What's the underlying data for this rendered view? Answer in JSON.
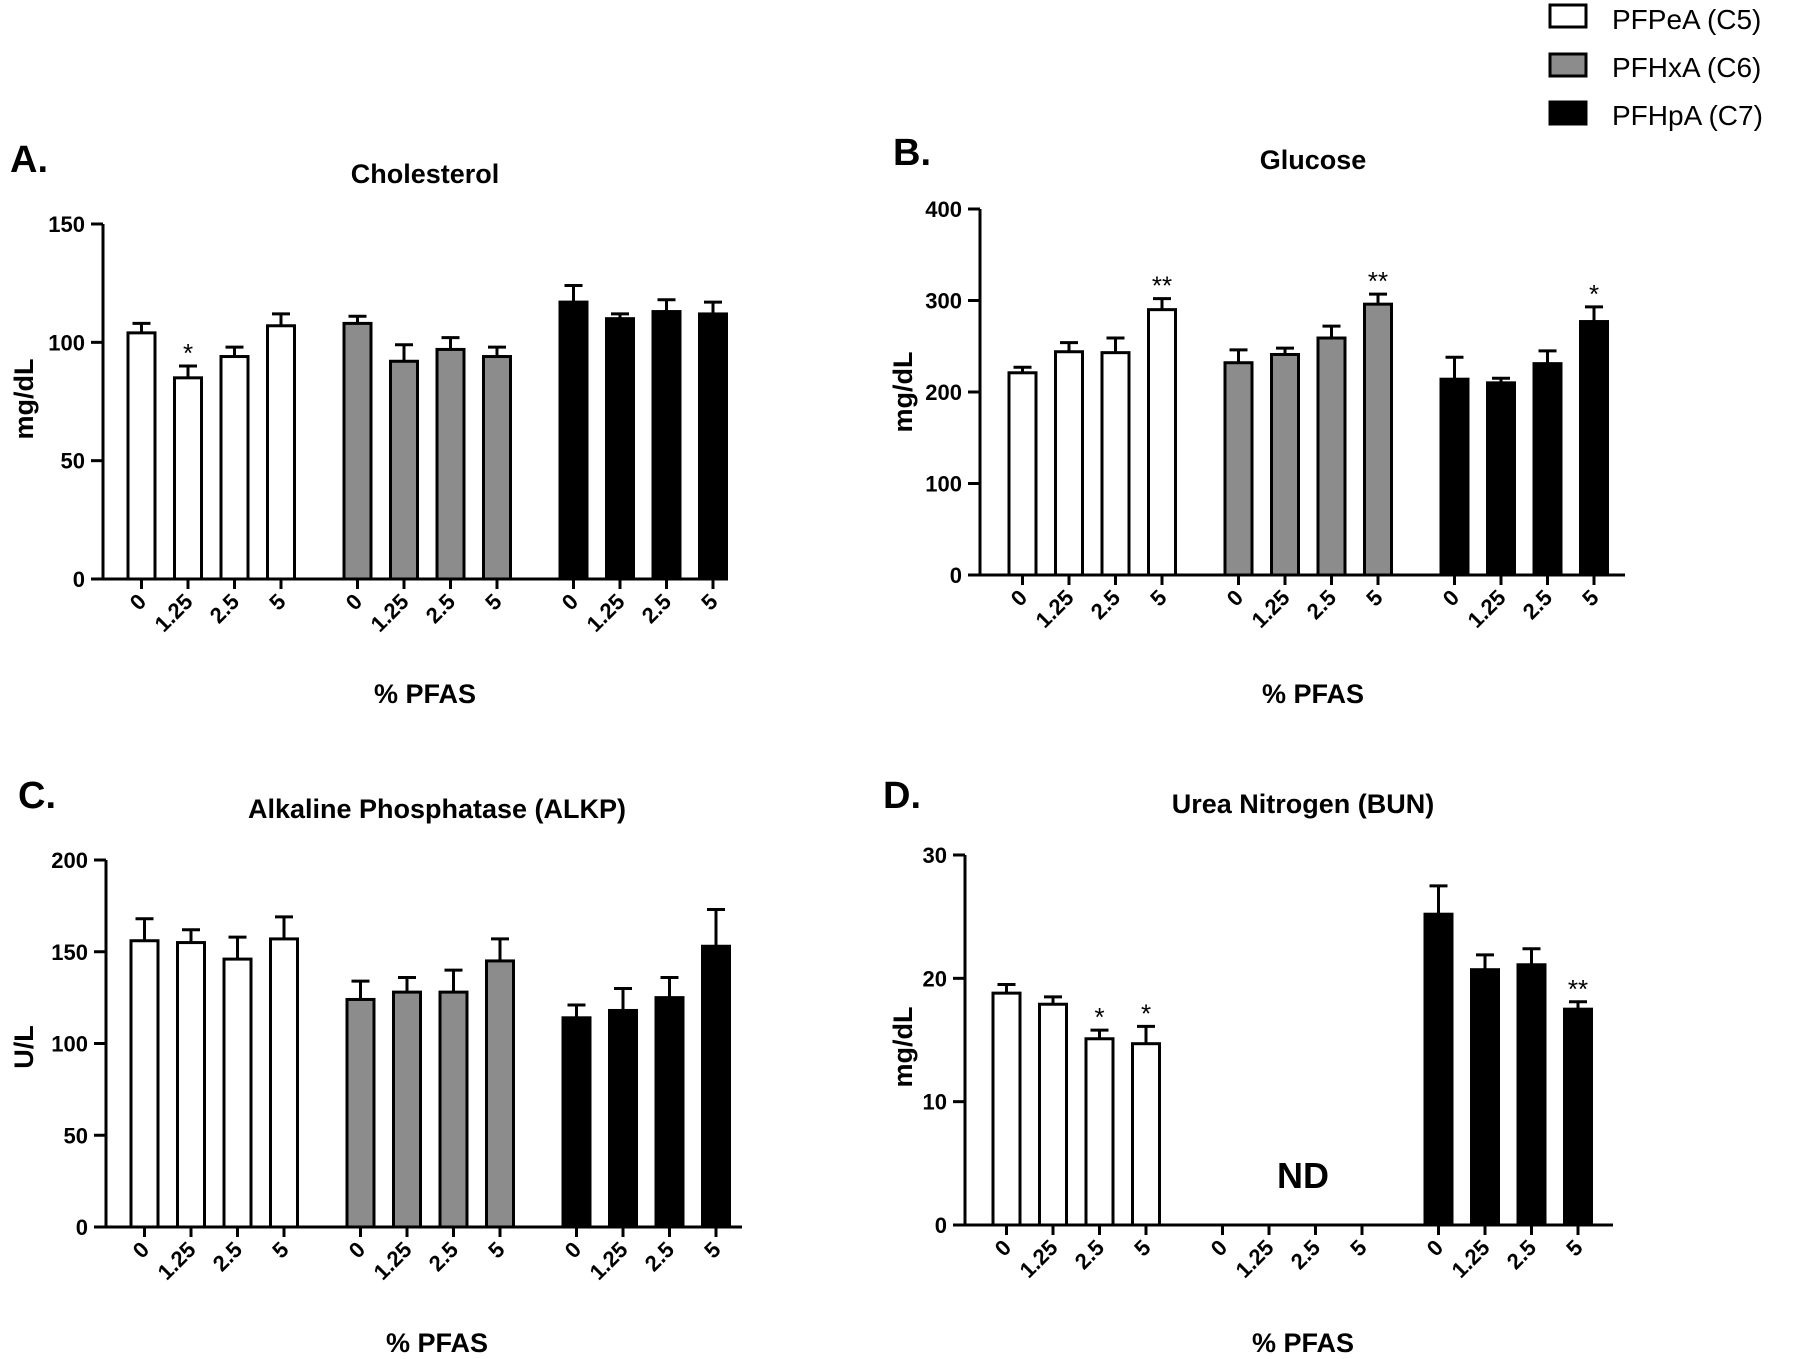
{
  "legend": [
    {
      "label": "PFPeA (C5)",
      "color": "#ffffff"
    },
    {
      "label": "PFHxA (C6)",
      "color": "#8c8c8c"
    },
    {
      "label": "PFHpA (C7)",
      "color": "#000000"
    }
  ],
  "chart_data": [
    {
      "type": "bar",
      "panel": "A.",
      "title": "Cholesterol",
      "ylabel": "mg/dL",
      "xlabel": "% PFAS",
      "ylim": [
        0,
        150
      ],
      "yticks": [
        "0",
        "50",
        "100",
        "150"
      ],
      "groups": [
        {
          "series": "PFPeA (C5)",
          "categories": [
            "0",
            "1.25",
            "2.5",
            "5"
          ],
          "values": [
            104,
            85,
            94,
            107
          ],
          "errors": [
            4,
            5,
            4,
            5
          ],
          "sig": [
            "",
            "*",
            "",
            ""
          ]
        },
        {
          "series": "PFHxA (C6)",
          "categories": [
            "0",
            "1.25",
            "2.5",
            "5"
          ],
          "values": [
            108,
            92,
            97,
            94
          ],
          "errors": [
            3,
            7,
            5,
            4
          ],
          "sig": [
            "",
            "",
            "",
            ""
          ]
        },
        {
          "series": "PFHpA (C7)",
          "categories": [
            "0",
            "1.25",
            "2.5",
            "5"
          ],
          "values": [
            117,
            110,
            113,
            112
          ],
          "errors": [
            7,
            2,
            5,
            5
          ],
          "sig": [
            "",
            "",
            "",
            ""
          ]
        }
      ]
    },
    {
      "type": "bar",
      "panel": "B.",
      "title": "Glucose",
      "ylabel": "mg/dL",
      "xlabel": "% PFAS",
      "ylim": [
        0,
        400
      ],
      "yticks": [
        "0",
        "100",
        "200",
        "300",
        "400"
      ],
      "groups": [
        {
          "series": "PFPeA (C5)",
          "categories": [
            "0",
            "1.25",
            "2.5",
            "5"
          ],
          "values": [
            221,
            244,
            243,
            290
          ],
          "errors": [
            6,
            10,
            16,
            12
          ],
          "sig": [
            "",
            "",
            "",
            "**"
          ]
        },
        {
          "series": "PFHxA (C6)",
          "categories": [
            "0",
            "1.25",
            "2.5",
            "5"
          ],
          "values": [
            232,
            241,
            259,
            296
          ],
          "errors": [
            14,
            7,
            13,
            11
          ],
          "sig": [
            "",
            "",
            "",
            "**"
          ]
        },
        {
          "series": "PFHpA (C7)",
          "categories": [
            "0",
            "1.25",
            "2.5",
            "5"
          ],
          "values": [
            214,
            210,
            231,
            277
          ],
          "errors": [
            24,
            5,
            14,
            16
          ],
          "sig": [
            "",
            "",
            "",
            "*"
          ]
        }
      ]
    },
    {
      "type": "bar",
      "panel": "C.",
      "title": "Alkaline Phosphatase (ALKP)",
      "ylabel": "U/L",
      "xlabel": "% PFAS",
      "ylim": [
        0,
        200
      ],
      "yticks": [
        "0",
        "50",
        "100",
        "150",
        "200"
      ],
      "groups": [
        {
          "series": "PFPeA (C5)",
          "categories": [
            "0",
            "1.25",
            "2.5",
            "5"
          ],
          "values": [
            156,
            155,
            146,
            157
          ],
          "errors": [
            12,
            7,
            12,
            12
          ],
          "sig": [
            "",
            "",
            "",
            ""
          ]
        },
        {
          "series": "PFHxA (C6)",
          "categories": [
            "0",
            "1.25",
            "2.5",
            "5"
          ],
          "values": [
            124,
            128,
            128,
            145
          ],
          "errors": [
            10,
            8,
            12,
            12
          ],
          "sig": [
            "",
            "",
            "",
            ""
          ]
        },
        {
          "series": "PFHpA (C7)",
          "categories": [
            "0",
            "1.25",
            "2.5",
            "5"
          ],
          "values": [
            114,
            118,
            125,
            153
          ],
          "errors": [
            7,
            12,
            11,
            20
          ],
          "sig": [
            "",
            "",
            "",
            ""
          ]
        }
      ]
    },
    {
      "type": "bar",
      "panel": "D.",
      "title": "Urea Nitrogen (BUN)",
      "ylabel": "mg/dL",
      "xlabel": "% PFAS",
      "ylim": [
        0,
        30
      ],
      "yticks": [
        "0",
        "10",
        "20",
        "30"
      ],
      "annotation": "ND",
      "groups": [
        {
          "series": "PFPeA (C5)",
          "categories": [
            "0",
            "1.25",
            "2.5",
            "5"
          ],
          "values": [
            18.8,
            17.9,
            15.1,
            14.7
          ],
          "errors": [
            0.7,
            0.6,
            0.7,
            1.4
          ],
          "sig": [
            "",
            "",
            "*",
            "*"
          ]
        },
        {
          "series": "PFHxA (C6)",
          "categories": [
            "0",
            "1.25",
            "2.5",
            "5"
          ],
          "values": [
            null,
            null,
            null,
            null
          ],
          "errors": [
            null,
            null,
            null,
            null
          ],
          "sig": [
            "",
            "",
            "",
            ""
          ]
        },
        {
          "series": "PFHpA (C7)",
          "categories": [
            "0",
            "1.25",
            "2.5",
            "5"
          ],
          "values": [
            25.2,
            20.7,
            21.1,
            17.5
          ],
          "errors": [
            2.3,
            1.2,
            1.3,
            0.6
          ],
          "sig": [
            "",
            "",
            "",
            "**"
          ]
        }
      ]
    }
  ]
}
